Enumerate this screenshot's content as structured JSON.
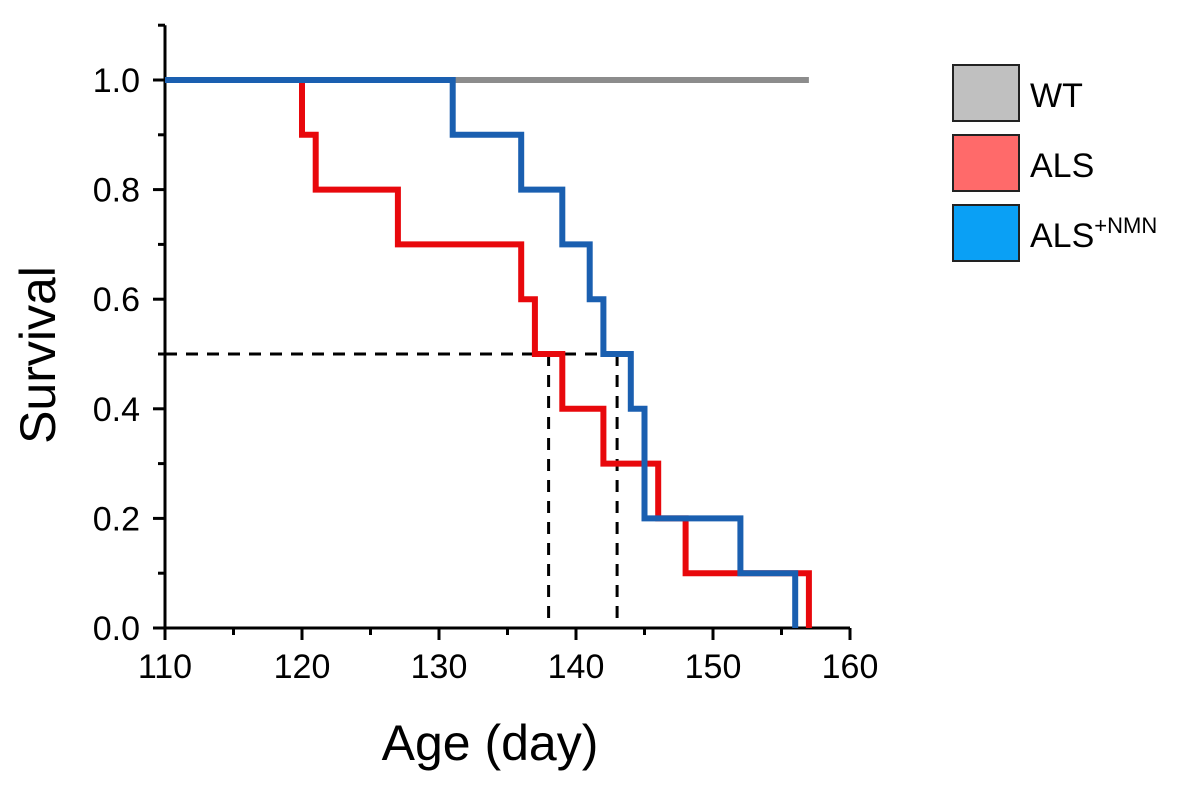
{
  "chart_data": {
    "type": "line",
    "subtype": "step (Kaplan-Meier survival)",
    "title": "",
    "xlabel": "Age (day)",
    "ylabel": "Survival",
    "xlim": [
      110,
      160
    ],
    "ylim": [
      0,
      1.1
    ],
    "xticks": [
      "110",
      "120",
      "130",
      "140",
      "150",
      "160"
    ],
    "yticks": [
      "0.0",
      "0.2",
      "0.4",
      "0.6",
      "0.8",
      "1.0"
    ],
    "grid": false,
    "legend_position": "top-right (outside)",
    "series": [
      {
        "name": "WT",
        "color": "#8c8c8c",
        "legend_color": "#c0c0c0",
        "x": [
          110,
          157
        ],
        "y": [
          1.0,
          1.0
        ]
      },
      {
        "name": "ALS",
        "color": "#e8080c",
        "legend_color": "#ff6a6a",
        "x": [
          110,
          120,
          121,
          127,
          136,
          137,
          139,
          142,
          146,
          148,
          157
        ],
        "y": [
          1.0,
          0.9,
          0.8,
          0.7,
          0.6,
          0.5,
          0.4,
          0.3,
          0.2,
          0.1,
          0.0
        ]
      },
      {
        "name": "ALS",
        "name_sup": "+NMN",
        "color": "#1a5fb0",
        "legend_color": "#0aa0f5",
        "x": [
          110,
          131,
          136,
          139,
          141,
          142,
          144,
          145,
          152,
          156
        ],
        "y": [
          1.0,
          0.9,
          0.8,
          0.7,
          0.6,
          0.5,
          0.4,
          0.2,
          0.1,
          0.0
        ]
      }
    ],
    "annotations": {
      "median_line_y": 0.5,
      "median_x": [
        138,
        143
      ],
      "style": "dashed black"
    }
  }
}
